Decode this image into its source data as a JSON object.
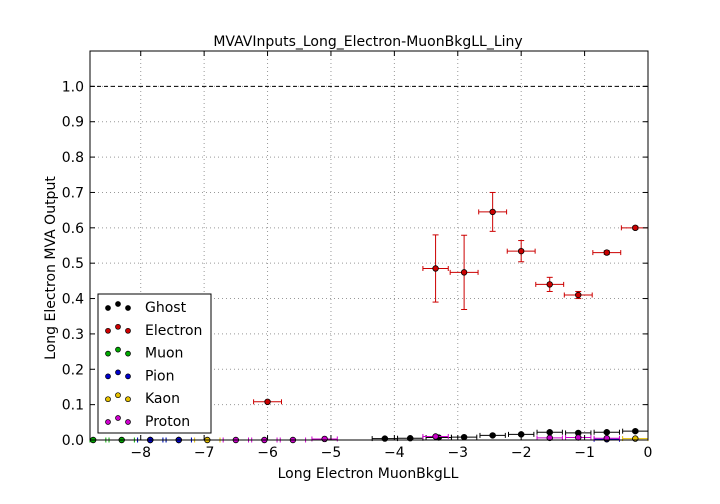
{
  "chart_data": {
    "type": "scatter",
    "title": "MVAVInputs_Long_Electron-MuonBkgLL_Liny",
    "xlabel": "Long Electron MuonBkgLL",
    "ylabel": "Long Electron MVA Output",
    "xlim": [
      -8.8,
      0.0
    ],
    "ylim": [
      0.0,
      1.1
    ],
    "xticks": [
      -8,
      -7,
      -6,
      -5,
      -4,
      -3,
      -2,
      -1,
      0
    ],
    "xtick_labels": [
      "−8",
      "−7",
      "−6",
      "−5",
      "−4",
      "−3",
      "−2",
      "−1",
      "0"
    ],
    "yticks": [
      0.0,
      0.1,
      0.2,
      0.3,
      0.4,
      0.5,
      0.6,
      0.7,
      0.8,
      0.9,
      1.0
    ],
    "ytick_labels": [
      "0.0",
      "0.1",
      "0.2",
      "0.3",
      "0.4",
      "0.5",
      "0.6",
      "0.7",
      "0.8",
      "0.9",
      "1.0"
    ],
    "grid": true,
    "reference_line": 1.0,
    "legend_position": "lower-left",
    "series": [
      {
        "name": "Ghost",
        "color": "#000000",
        "points": [
          {
            "x": -4.15,
            "y": 0.004,
            "xerr": 0.2,
            "yerr": 0.002
          },
          {
            "x": -3.75,
            "y": 0.005,
            "xerr": 0.2,
            "yerr": 0.002
          },
          {
            "x": -3.3,
            "y": 0.007,
            "xerr": 0.2,
            "yerr": 0.002
          },
          {
            "x": -2.9,
            "y": 0.008,
            "xerr": 0.2,
            "yerr": 0.002
          },
          {
            "x": -2.45,
            "y": 0.013,
            "xerr": 0.2,
            "yerr": 0.003
          },
          {
            "x": -2.0,
            "y": 0.016,
            "xerr": 0.2,
            "yerr": 0.003
          },
          {
            "x": -1.55,
            "y": 0.022,
            "xerr": 0.2,
            "yerr": 0.003
          },
          {
            "x": -1.1,
            "y": 0.02,
            "xerr": 0.2,
            "yerr": 0.003
          },
          {
            "x": -0.65,
            "y": 0.022,
            "xerr": 0.2,
            "yerr": 0.003
          },
          {
            "x": -0.2,
            "y": 0.025,
            "xerr": 0.2,
            "yerr": 0.003
          }
        ]
      },
      {
        "name": "Electron",
        "color": "#cc0000",
        "points": [
          {
            "x": -6.0,
            "y": 0.108,
            "xerr": 0.22,
            "yerr": 0.003
          },
          {
            "x": -3.35,
            "y": 0.485,
            "xerr": 0.2,
            "yerr": 0.095
          },
          {
            "x": -2.9,
            "y": 0.474,
            "xerr": 0.22,
            "yerr": 0.105
          },
          {
            "x": -2.45,
            "y": 0.645,
            "xerr": 0.22,
            "yerr": 0.055
          },
          {
            "x": -2.0,
            "y": 0.534,
            "xerr": 0.22,
            "yerr": 0.03
          },
          {
            "x": -1.55,
            "y": 0.44,
            "xerr": 0.22,
            "yerr": 0.02
          },
          {
            "x": -1.1,
            "y": 0.41,
            "xerr": 0.22,
            "yerr": 0.01
          },
          {
            "x": -0.65,
            "y": 0.53,
            "xerr": 0.22,
            "yerr": 0.005
          },
          {
            "x": -0.2,
            "y": 0.6,
            "xerr": 0.22,
            "yerr": 0.004
          }
        ]
      },
      {
        "name": "Muon",
        "color": "#00aa00",
        "points": [
          {
            "x": -8.75,
            "y": 0.0,
            "xerr": 0.2,
            "yerr": 0.0
          },
          {
            "x": -8.3,
            "y": 0.0,
            "xerr": 0.2,
            "yerr": 0.0
          },
          {
            "x": -7.85,
            "y": 0.0,
            "xerr": 0.2,
            "yerr": 0.0
          },
          {
            "x": -7.4,
            "y": 0.0,
            "xerr": 0.2,
            "yerr": 0.0
          }
        ]
      },
      {
        "name": "Pion",
        "color": "#0000cc",
        "points": [
          {
            "x": -7.85,
            "y": 0.0,
            "xerr": 0.2,
            "yerr": 0.0
          },
          {
            "x": -7.4,
            "y": 0.0,
            "xerr": 0.2,
            "yerr": 0.0
          },
          {
            "x": -0.65,
            "y": 0.002,
            "xerr": 0.2,
            "yerr": 0.001
          }
        ]
      },
      {
        "name": "Kaon",
        "color": "#e6c000",
        "points": [
          {
            "x": -6.95,
            "y": 0.0,
            "xerr": 0.2,
            "yerr": 0.0
          },
          {
            "x": -0.2,
            "y": 0.004,
            "xerr": 0.2,
            "yerr": 0.001
          }
        ]
      },
      {
        "name": "Proton",
        "color": "#cc00cc",
        "points": [
          {
            "x": -6.5,
            "y": 0.0,
            "xerr": 0.2,
            "yerr": 0.0
          },
          {
            "x": -6.05,
            "y": 0.0,
            "xerr": 0.2,
            "yerr": 0.0
          },
          {
            "x": -5.6,
            "y": 0.0,
            "xerr": 0.2,
            "yerr": 0.0
          },
          {
            "x": -5.1,
            "y": 0.003,
            "xerr": 0.2,
            "yerr": 0.001
          },
          {
            "x": -3.35,
            "y": 0.01,
            "xerr": 0.2,
            "yerr": 0.002
          },
          {
            "x": -1.55,
            "y": 0.006,
            "xerr": 0.2,
            "yerr": 0.002
          },
          {
            "x": -1.1,
            "y": 0.007,
            "xerr": 0.2,
            "yerr": 0.002
          },
          {
            "x": -0.65,
            "y": 0.005,
            "xerr": 0.2,
            "yerr": 0.002
          }
        ]
      }
    ]
  }
}
